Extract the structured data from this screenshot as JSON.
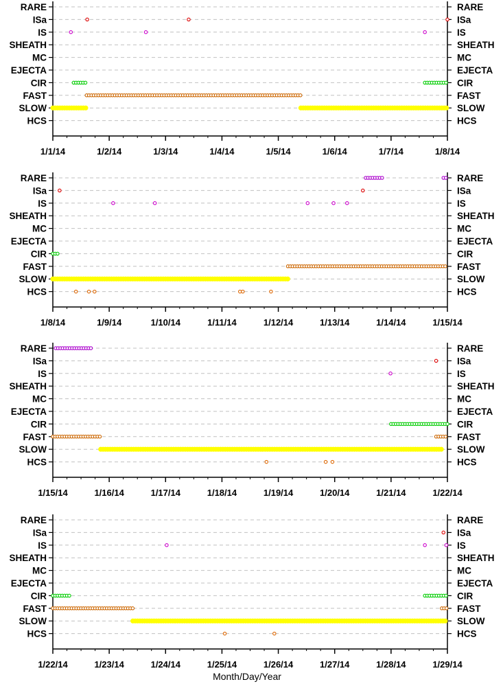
{
  "chart_data": {
    "type": "scatter",
    "xlabel": "Month/Day/Year",
    "categories": [
      "RARE",
      "ISa",
      "IS",
      "SHEATH",
      "MC",
      "EJECTA",
      "CIR",
      "FAST",
      "SLOW",
      "HCS"
    ],
    "colors": {
      "RARE": "#aa00cc",
      "ISa": "#dd0000",
      "IS": "#cc00cc",
      "CIR": "#00cc00",
      "FAST": "#cc6600",
      "SLOW": "#ffff00",
      "HCS": "#dd6600",
      "gridline": "#c0c0c0"
    },
    "grid": true,
    "panels": [
      {
        "x_range": [
          "2014-01-01",
          "2014-01-08"
        ],
        "x_ticks": [
          "1/1/14",
          "1/2/14",
          "1/3/14",
          "1/4/14",
          "1/5/14",
          "1/6/14",
          "1/7/14",
          "1/8/14"
        ],
        "points": [
          {
            "category": "ISa",
            "x": [
              0.61,
              2.41,
              7.0
            ]
          },
          {
            "category": "IS",
            "x": [
              0.32,
              1.65,
              6.6
            ]
          },
          {
            "category": "CIR",
            "ranges": [
              [
                0.37,
                0.6
              ],
              [
                6.6,
                7.0
              ]
            ]
          },
          {
            "category": "FAST",
            "ranges": [
              [
                0.6,
                4.4
              ]
            ]
          },
          {
            "category": "SLOW",
            "ranges": [
              [
                0.0,
                0.6
              ],
              [
                4.4,
                7.0
              ]
            ]
          }
        ]
      },
      {
        "x_range": [
          "2014-01-08",
          "2014-01-15"
        ],
        "x_ticks": [
          "1/8/14",
          "1/9/14",
          "1/10/14",
          "1/11/14",
          "1/12/14",
          "1/13/14",
          "1/14/14",
          "1/15/14"
        ],
        "points": [
          {
            "category": "RARE",
            "ranges": [
              [
                5.55,
                5.85
              ],
              [
                6.93,
                7.0
              ]
            ]
          },
          {
            "category": "ISa",
            "x": [
              0.12,
              5.5
            ]
          },
          {
            "category": "IS",
            "x": [
              1.07,
              1.81,
              4.52,
              4.98,
              5.22
            ]
          },
          {
            "category": "CIR",
            "ranges": [
              [
                0.0,
                0.1
              ]
            ]
          },
          {
            "category": "FAST",
            "ranges": [
              [
                4.17,
                7.0
              ]
            ]
          },
          {
            "category": "SLOW",
            "ranges": [
              [
                0.0,
                4.17
              ]
            ]
          },
          {
            "category": "HCS",
            "x": [
              0.41,
              0.64,
              0.74,
              3.32,
              3.37,
              3.87
            ]
          }
        ]
      },
      {
        "x_range": [
          "2014-01-15",
          "2014-01-22"
        ],
        "x_ticks": [
          "1/15/14",
          "1/16/14",
          "1/17/14",
          "1/18/14",
          "1/19/14",
          "1/20/14",
          "1/21/14",
          "1/22/14"
        ],
        "points": [
          {
            "category": "RARE",
            "ranges": [
              [
                0.05,
                0.7
              ]
            ]
          },
          {
            "category": "ISa",
            "x": [
              6.8
            ]
          },
          {
            "category": "IS",
            "x": [
              5.99
            ]
          },
          {
            "category": "CIR",
            "ranges": [
              [
                6.0,
                7.0
              ]
            ]
          },
          {
            "category": "FAST",
            "ranges": [
              [
                0.0,
                0.85
              ],
              [
                6.8,
                7.0
              ]
            ]
          },
          {
            "category": "SLOW",
            "ranges": [
              [
                0.85,
                6.9
              ]
            ]
          },
          {
            "category": "HCS",
            "x": [
              3.79,
              4.84,
              4.96
            ]
          }
        ]
      },
      {
        "x_range": [
          "2014-01-22",
          "2014-01-29"
        ],
        "x_ticks": [
          "1/22/14",
          "1/23/14",
          "1/24/14",
          "1/25/14",
          "1/26/14",
          "1/27/14",
          "1/28/14",
          "1/29/14"
        ],
        "points": [
          {
            "category": "ISa",
            "x": [
              6.93
            ]
          },
          {
            "category": "IS",
            "x": [
              2.02,
              6.6,
              6.98
            ]
          },
          {
            "category": "CIR",
            "ranges": [
              [
                0.0,
                0.3
              ],
              [
                6.6,
                7.0
              ]
            ]
          },
          {
            "category": "FAST",
            "ranges": [
              [
                0.0,
                1.42
              ],
              [
                6.9,
                7.0
              ]
            ]
          },
          {
            "category": "SLOW",
            "ranges": [
              [
                1.42,
                6.98
              ]
            ]
          },
          {
            "category": "HCS",
            "x": [
              3.05,
              3.93
            ]
          }
        ]
      }
    ]
  }
}
